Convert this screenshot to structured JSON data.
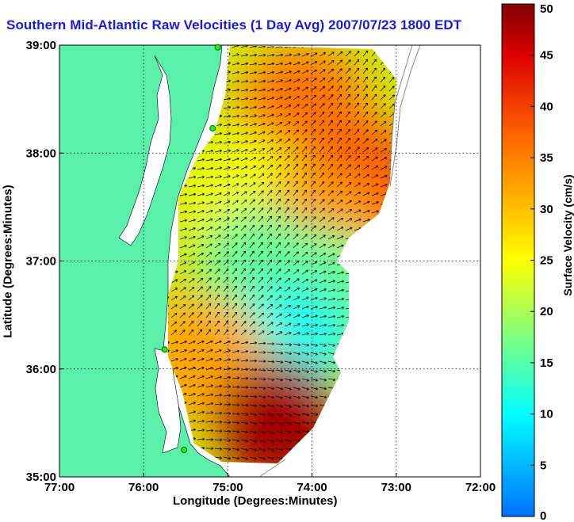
{
  "chart_data": {
    "type": "heatmap",
    "title": "Southern Mid-Atlantic Raw Velocities (1 Day Avg) 2007/07/23 1800 EDT",
    "xlabel": "Longitude (Degrees:Minutes)",
    "ylabel": "Latitude (Degrees:Minutes)",
    "colorbar_label": "Surface Velocity (cm/s)",
    "xlim": [
      -77,
      -72
    ],
    "ylim": [
      35,
      39
    ],
    "xticks": [
      -77,
      -76,
      -75,
      -74,
      -73,
      -72
    ],
    "xtick_labels": [
      "77:00",
      "76:00",
      "75:00",
      "74:00",
      "73:00",
      "72:00"
    ],
    "yticks": [
      35,
      36,
      37,
      38,
      39
    ],
    "ytick_labels": [
      "35:00",
      "36:00",
      "37:00",
      "38:00",
      "39:00"
    ],
    "colorbar_range": [
      0,
      50
    ],
    "colorbar_ticks": [
      0,
      5,
      10,
      15,
      20,
      25,
      30,
      35,
      40,
      45,
      50
    ],
    "colorbar_tick_labels": [
      "0",
      "5",
      "10",
      "15",
      "20",
      "25",
      "30",
      "35",
      "40",
      "45",
      "50"
    ],
    "colormap": "jet",
    "grid": true,
    "land_color": "#5af0aa",
    "velocity_regions": [
      {
        "lon": -74.1,
        "lat": 38.4,
        "speed": 36
      },
      {
        "lon": -73.3,
        "lat": 37.7,
        "speed": 38
      },
      {
        "lon": -74.8,
        "lat": 37.6,
        "speed": 24
      },
      {
        "lon": -73.9,
        "lat": 37.3,
        "speed": 33
      },
      {
        "lon": -74.6,
        "lat": 36.9,
        "speed": 16
      },
      {
        "lon": -73.8,
        "lat": 36.7,
        "speed": 16
      },
      {
        "lon": -74.3,
        "lat": 36.2,
        "speed": 11
      },
      {
        "lon": -75.3,
        "lat": 36.1,
        "speed": 32
      },
      {
        "lon": -74.4,
        "lat": 35.5,
        "speed": 48
      }
    ],
    "stations": [
      {
        "lon": -75.12,
        "lat": 38.98
      },
      {
        "lon": -75.18,
        "lat": 38.23
      },
      {
        "lon": -75.75,
        "lat": 36.18
      },
      {
        "lon": -75.52,
        "lat": 35.25
      }
    ]
  }
}
